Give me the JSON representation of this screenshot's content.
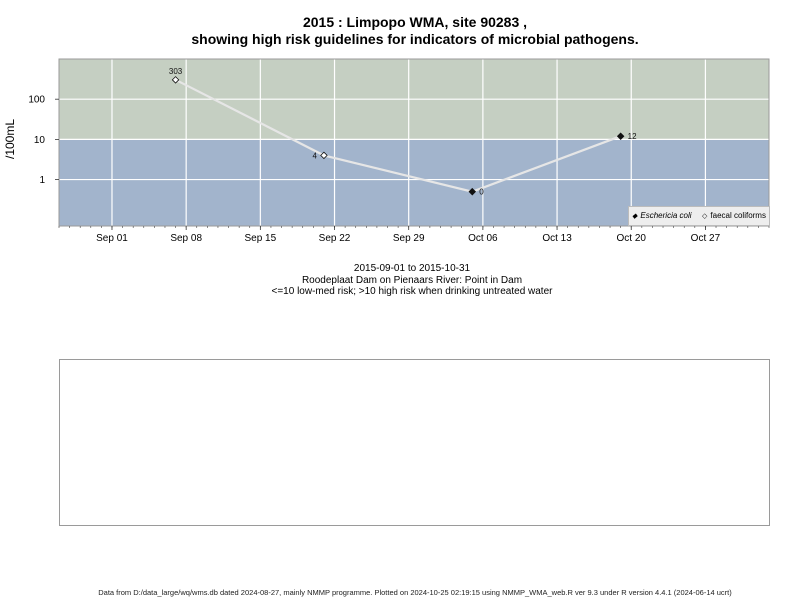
{
  "chart": {
    "title_line1": "2015 : Limpopo WMA, site 90283 ,",
    "title_line2": "showing high risk guidelines for indicators of microbial pathogens.",
    "ylabel": "/100mL",
    "caption_dates": "2015-09-01 to 2015-10-31",
    "caption_site": "Roodeplaat Dam on Pienaars River: Point in Dam",
    "caption_risk": "<=10 low-med risk; >10 high risk when drinking untreated water",
    "footer": "Data from D:/data_large/wq/wms.db dated 2024-08-27, mainly NMMP programme. Plotted on 2024-10-25 02:19:15 using NMMP_WMA_web.R ver 9.3 under R version 4.4.1 (2024-06-14 ucrt)",
    "legend": {
      "ecoli_label": "Eschericia coli",
      "faecal_label": "faecal coliforms",
      "ecoli_marker": "◆",
      "faecal_marker": "◇"
    }
  },
  "chart_data": {
    "type": "line",
    "title": "2015 : Limpopo WMA, site 90283 , showing high risk guidelines for indicators of microbial pathogens.",
    "xlabel": "",
    "ylabel": "/100mL",
    "y_scale": "log10",
    "ylim": [
      0.07,
      1000
    ],
    "xlim": [
      "2015-08-27",
      "2015-11-02"
    ],
    "x_ticks": [
      "2015-09-01",
      "2015-09-08",
      "2015-09-15",
      "2015-09-22",
      "2015-09-29",
      "2015-10-06",
      "2015-10-13",
      "2015-10-20",
      "2015-10-27"
    ],
    "x_tick_labels": [
      "Sep 01",
      "Sep 08",
      "Sep 15",
      "Sep 22",
      "Sep 29",
      "Oct 06",
      "Oct 13",
      "Oct 20",
      "Oct 27"
    ],
    "y_ticks": [
      1,
      10,
      100
    ],
    "y_tick_labels": [
      "1",
      "10",
      "100"
    ],
    "threshold": 10,
    "bands": [
      {
        "from": 10,
        "to": 1000,
        "color": "#c5cfc2",
        "meaning": "high risk"
      },
      {
        "from": 0.07,
        "to": 10,
        "color": "#a2b4cc",
        "meaning": "low-med risk"
      }
    ],
    "grid": true,
    "legend_placement": "bottom-right",
    "line_color": "#e6e6e6",
    "series": [
      {
        "name": "Eschericia coli",
        "marker": "filled-diamond",
        "points": [
          {
            "x": "2015-10-05",
            "y": 0.5,
            "label": "0"
          },
          {
            "x": "2015-10-19",
            "y": 12,
            "label": "12"
          }
        ]
      },
      {
        "name": "faecal coliforms",
        "marker": "open-diamond",
        "points": [
          {
            "x": "2015-09-07",
            "y": 303,
            "label": "303"
          },
          {
            "x": "2015-09-21",
            "y": 4,
            "label": "4"
          }
        ]
      }
    ],
    "line_path": [
      {
        "x": "2015-09-07",
        "y": 303
      },
      {
        "x": "2015-09-21",
        "y": 4
      },
      {
        "x": "2015-10-05",
        "y": 0.5
      },
      {
        "x": "2015-10-19",
        "y": 12
      }
    ]
  }
}
